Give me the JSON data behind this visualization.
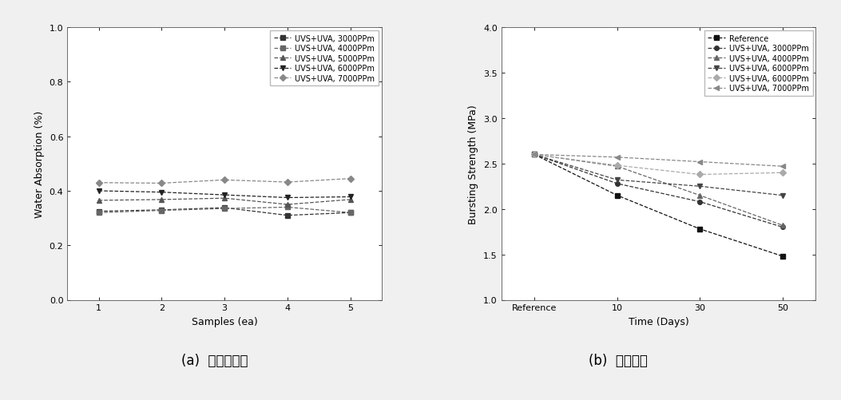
{
  "left_chart": {
    "xlabel": "Samples (ea)",
    "ylabel": "Water Absorption (%)",
    "xlim": [
      0.5,
      5.5
    ],
    "ylim": [
      0.0,
      1.0
    ],
    "yticks": [
      0.0,
      0.2,
      0.4,
      0.6,
      0.8,
      1.0
    ],
    "xticks": [
      1,
      2,
      3,
      4,
      5
    ],
    "series": [
      {
        "label": "UVS+UVA, 3000PPm",
        "marker": "s",
        "linestyle": "--",
        "color": "#333333",
        "data": [
          [
            1,
            0.325
          ],
          [
            2,
            0.33
          ],
          [
            3,
            0.338
          ],
          [
            4,
            0.31
          ],
          [
            5,
            0.32
          ]
        ]
      },
      {
        "label": "UVS+UVA, 4000PPm",
        "marker": "s",
        "linestyle": "--",
        "color": "#666666",
        "data": [
          [
            1,
            0.32
          ],
          [
            2,
            0.328
          ],
          [
            3,
            0.335
          ],
          [
            4,
            0.34
          ],
          [
            5,
            0.32
          ]
        ]
      },
      {
        "label": "UVS+UVA, 5000PPm",
        "marker": "^",
        "linestyle": "--",
        "color": "#555555",
        "data": [
          [
            1,
            0.365
          ],
          [
            2,
            0.368
          ],
          [
            3,
            0.373
          ],
          [
            4,
            0.35
          ],
          [
            5,
            0.368
          ]
        ]
      },
      {
        "label": "UVS+UVA, 6000PPm",
        "marker": "v",
        "linestyle": "--",
        "color": "#222222",
        "data": [
          [
            1,
            0.4
          ],
          [
            2,
            0.395
          ],
          [
            3,
            0.385
          ],
          [
            4,
            0.375
          ],
          [
            5,
            0.378
          ]
        ]
      },
      {
        "label": "UVS+UVA, 7000PPm",
        "marker": "D",
        "linestyle": "--",
        "color": "#888888",
        "data": [
          [
            1,
            0.43
          ],
          [
            2,
            0.428
          ],
          [
            3,
            0.44
          ],
          [
            4,
            0.432
          ],
          [
            5,
            0.445
          ]
        ]
      }
    ],
    "legend_loc": "upper right"
  },
  "right_chart": {
    "xlabel": "Time (Days)",
    "ylabel": "Bursting Strength (MPa)",
    "xlim": [
      -0.4,
      3.4
    ],
    "ylim": [
      1.0,
      4.0
    ],
    "yticks": [
      1.0,
      1.5,
      2.0,
      2.5,
      3.0,
      3.5,
      4.0
    ],
    "xtick_positions": [
      0,
      1,
      2,
      3
    ],
    "xtick_labels": [
      "Reference",
      "10",
      "30",
      "50"
    ],
    "series": [
      {
        "label": "Reference",
        "marker": "s",
        "linestyle": "--",
        "color": "#111111",
        "data": [
          [
            0,
            2.6
          ],
          [
            1,
            2.15
          ],
          [
            2,
            1.78
          ],
          [
            3,
            1.48
          ]
        ]
      },
      {
        "label": "UVS+UVA, 3000PPm",
        "marker": "o",
        "linestyle": "--",
        "color": "#333333",
        "data": [
          [
            0,
            2.6
          ],
          [
            1,
            2.28
          ],
          [
            2,
            2.08
          ],
          [
            3,
            1.8
          ]
        ]
      },
      {
        "label": "UVS+UVA, 4000PPm",
        "marker": "^",
        "linestyle": "--",
        "color": "#666666",
        "data": [
          [
            0,
            2.6
          ],
          [
            1,
            2.47
          ],
          [
            2,
            2.15
          ],
          [
            3,
            1.82
          ]
        ]
      },
      {
        "label": "UVS+UVA, 6000PPm",
        "marker": "v",
        "linestyle": "--",
        "color": "#444444",
        "data": [
          [
            0,
            2.6
          ],
          [
            1,
            2.32
          ],
          [
            2,
            2.25
          ],
          [
            3,
            2.15
          ]
        ]
      },
      {
        "label": "UVS+UVA, 6000PPm",
        "marker": "D",
        "linestyle": "--",
        "color": "#aaaaaa",
        "data": [
          [
            0,
            2.6
          ],
          [
            1,
            2.48
          ],
          [
            2,
            2.38
          ],
          [
            3,
            2.4
          ]
        ]
      },
      {
        "label": "UVS+UVA, 7000PPm",
        "marker": "<",
        "linestyle": "--",
        "color": "#888888",
        "data": [
          [
            0,
            2.6
          ],
          [
            1,
            2.57
          ],
          [
            2,
            2.52
          ],
          [
            3,
            2.47
          ]
        ]
      }
    ],
    "legend_labels": [
      "Reference",
      "UVS+UVA, 3000PPm",
      "UVS+UVA, 4000PPm",
      "UVS+UVA, 6000PPm",
      "UVS+UVA, 6000PPm",
      "UVS+UVA, 7000PPm"
    ],
    "legend_loc": "upper right"
  },
  "caption_left": "(a)  수분흥수율",
  "caption_right": "(b)  파열강도",
  "caption_fontsize": 12,
  "bg_color": "#ffffff",
  "fig_bg_color": "#f0f0f0"
}
